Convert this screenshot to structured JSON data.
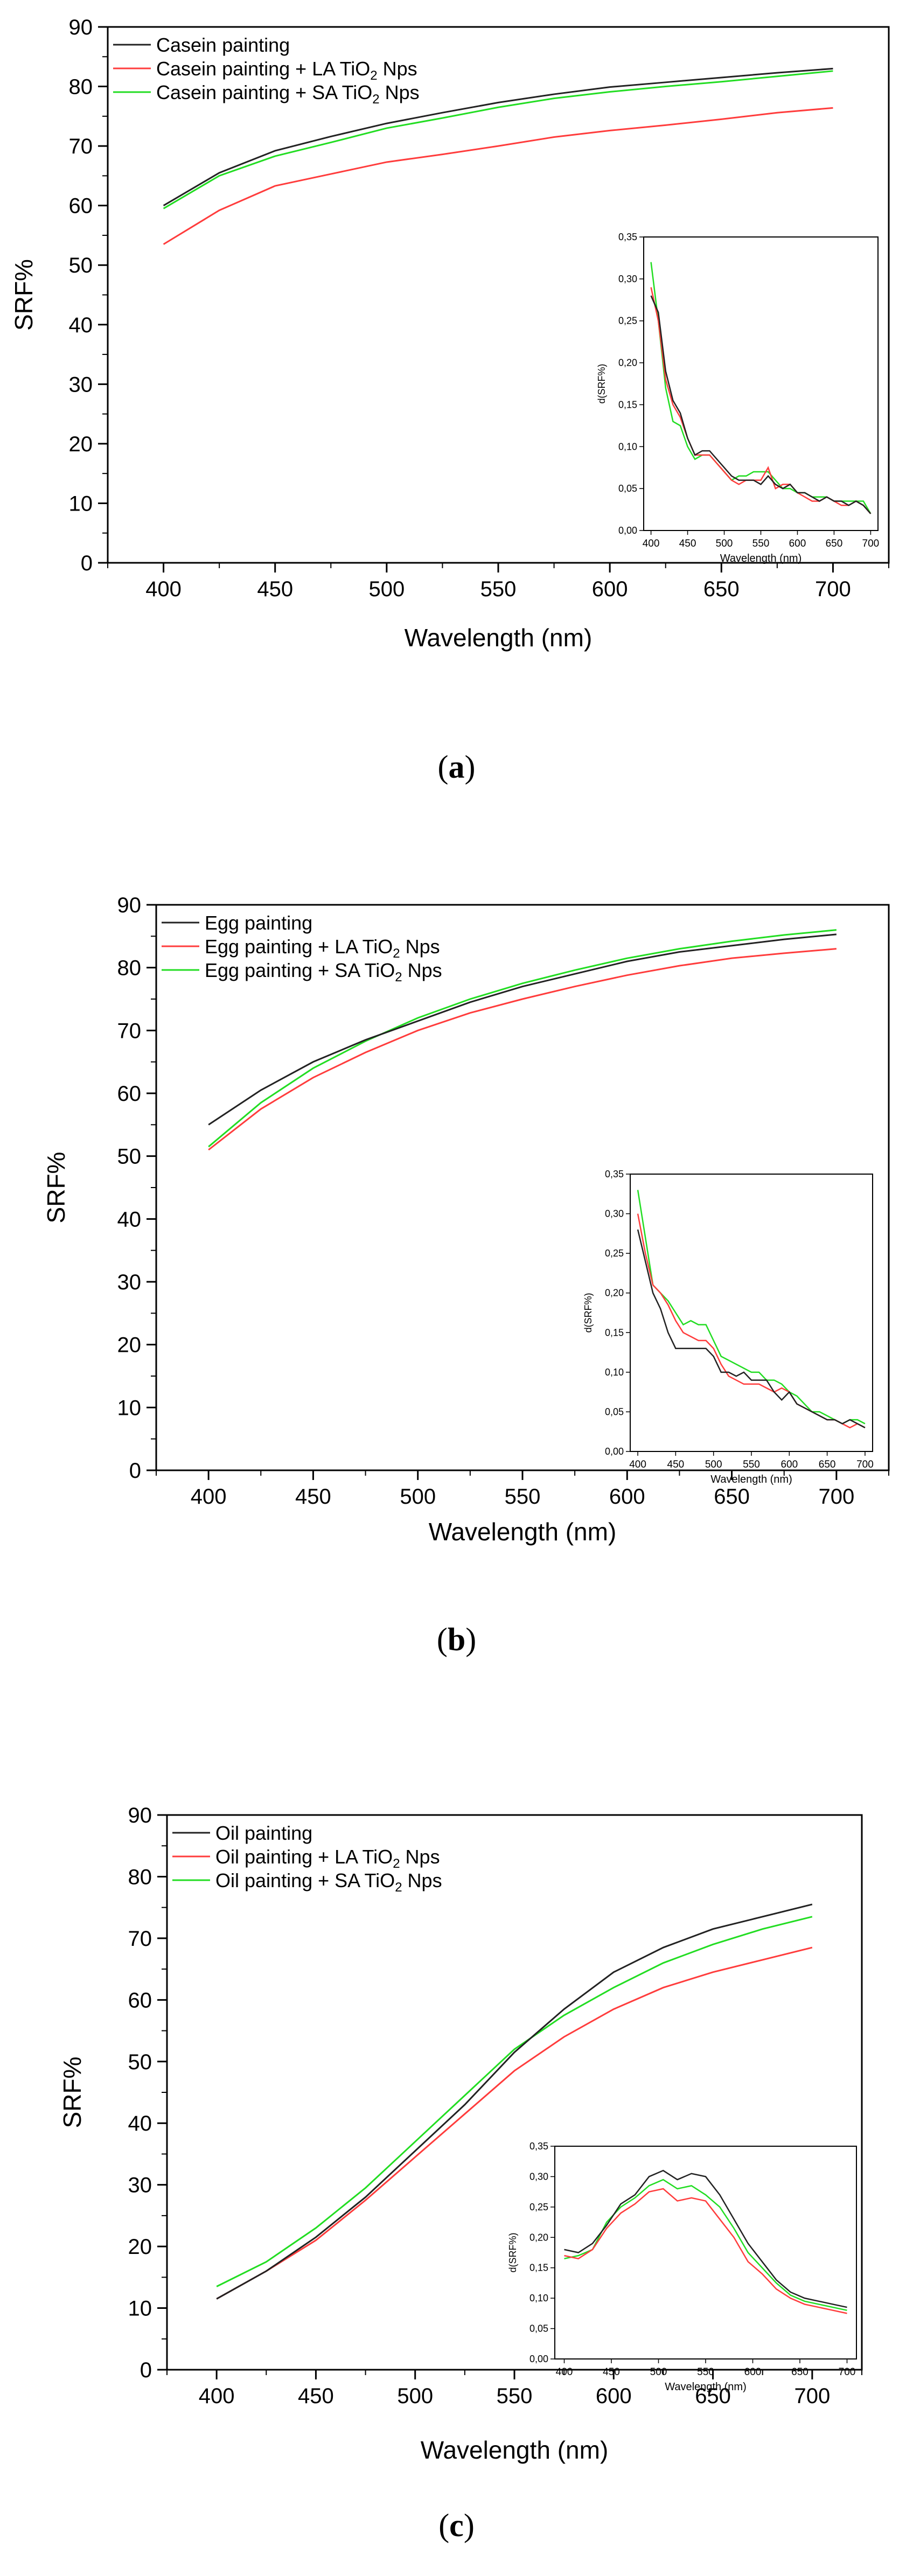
{
  "colors": {
    "series1": "#222222",
    "series2": "#ff3c3c",
    "series3": "#22dd22",
    "axis": "#000000"
  },
  "panels": [
    {
      "label": "a",
      "chart_data": {
        "type": "line",
        "title": "",
        "xlabel": "Wavelength (nm)",
        "ylabel": "SRF%",
        "xlim": [
          375,
          725
        ],
        "ylim": [
          0,
          90
        ],
        "xticks": [
          400,
          450,
          500,
          550,
          600,
          650,
          700
        ],
        "yticks": [
          0,
          10,
          20,
          30,
          40,
          50,
          60,
          70,
          80,
          90
        ],
        "x": [
          400,
          425,
          450,
          475,
          500,
          525,
          550,
          575,
          600,
          625,
          650,
          675,
          700
        ],
        "series": [
          {
            "name": "Casein painting",
            "values": [
              60,
              65.5,
              69.2,
              71.6,
              73.8,
              75.6,
              77.3,
              78.7,
              79.9,
              80.7,
              81.5,
              82.3,
              83
            ]
          },
          {
            "name": "Casein painting + LA TiO",
            "sub": "2",
            "suffix": " Nps",
            "values": [
              53.5,
              59.2,
              63.3,
              65.3,
              67.3,
              68.6,
              70,
              71.5,
              72.6,
              73.5,
              74.5,
              75.6,
              76.4
            ]
          },
          {
            "name": "Casein painting + SA TiO",
            "sub": "2",
            "suffix": " Nps",
            "values": [
              59.5,
              65,
              68.3,
              70.6,
              73,
              74.7,
              76.5,
              78,
              79.1,
              80,
              80.8,
              81.7,
              82.6
            ]
          }
        ],
        "inset": {
          "xlabel": "Wavelength (nm)",
          "ylabel": "d(SRF%)",
          "xlim": [
            390,
            710
          ],
          "ylim": [
            0,
            0.35
          ],
          "xticks": [
            400,
            450,
            500,
            550,
            600,
            650,
            700
          ],
          "yticks": [
            "0,00",
            "0,05",
            "0,10",
            "0,15",
            "0,20",
            "0,25",
            "0,30",
            "0,35"
          ],
          "x": [
            400,
            410,
            420,
            430,
            440,
            450,
            460,
            470,
            480,
            490,
            500,
            510,
            520,
            530,
            540,
            550,
            560,
            570,
            580,
            590,
            600,
            610,
            620,
            630,
            640,
            650,
            660,
            670,
            680,
            690,
            700
          ],
          "series": [
            {
              "name": "Casein painting",
              "values": [
                0.28,
                0.26,
                0.19,
                0.155,
                0.14,
                0.11,
                0.09,
                0.095,
                0.095,
                0.085,
                0.075,
                0.065,
                0.06,
                0.06,
                0.06,
                0.055,
                0.065,
                0.055,
                0.05,
                0.055,
                0.045,
                0.045,
                0.04,
                0.035,
                0.04,
                0.035,
                0.035,
                0.03,
                0.035,
                0.03,
                0.02
              ]
            },
            {
              "name": "Casein painting + LA TiO2 Nps",
              "values": [
                0.29,
                0.25,
                0.18,
                0.15,
                0.135,
                0.11,
                0.09,
                0.09,
                0.09,
                0.08,
                0.07,
                0.06,
                0.055,
                0.06,
                0.06,
                0.06,
                0.075,
                0.05,
                0.055,
                0.055,
                0.045,
                0.04,
                0.035,
                0.035,
                0.04,
                0.035,
                0.03,
                0.03,
                0.035,
                0.03,
                0.02
              ]
            },
            {
              "name": "Casein painting + SA TiO2 Nps",
              "values": [
                0.32,
                0.25,
                0.17,
                0.13,
                0.125,
                0.1,
                0.085,
                0.09,
                0.09,
                0.08,
                0.07,
                0.06,
                0.065,
                0.065,
                0.07,
                0.07,
                0.07,
                0.06,
                0.05,
                0.05,
                0.045,
                0.045,
                0.04,
                0.04,
                0.04,
                0.035,
                0.035,
                0.035,
                0.035,
                0.035,
                0.02
              ]
            }
          ]
        }
      }
    },
    {
      "label": "b",
      "chart_data": {
        "type": "line",
        "title": "",
        "xlabel": "Wavelength (nm)",
        "ylabel": "SRF%",
        "xlim": [
          375,
          725
        ],
        "ylim": [
          0,
          90
        ],
        "xticks": [
          400,
          450,
          500,
          550,
          600,
          650,
          700
        ],
        "yticks": [
          0,
          10,
          20,
          30,
          40,
          50,
          60,
          70,
          80,
          90
        ],
        "x": [
          400,
          425,
          450,
          475,
          500,
          525,
          550,
          575,
          600,
          625,
          650,
          675,
          700
        ],
        "series": [
          {
            "name": "Egg painting",
            "values": [
              55,
              60.5,
              65,
              68.5,
              71.5,
              74.5,
              77,
              79,
              81,
              82.5,
              83.5,
              84.5,
              85.3
            ]
          },
          {
            "name": "Egg painting + LA TiO",
            "sub": "2",
            "suffix": " Nps",
            "values": [
              51,
              57.5,
              62.5,
              66.5,
              70,
              72.8,
              75,
              77,
              78.8,
              80.3,
              81.5,
              82.3,
              83
            ]
          },
          {
            "name": "Egg painting + SA TiO",
            "sub": "2",
            "suffix": " Nps",
            "values": [
              51.5,
              58.5,
              64,
              68.3,
              72,
              75,
              77.5,
              79.6,
              81.5,
              83,
              84.2,
              85.2,
              86
            ]
          }
        ],
        "inset": {
          "xlabel": "Wavelength (nm)",
          "ylabel": "d(SRF%)",
          "xlim": [
            390,
            710
          ],
          "ylim": [
            0,
            0.35
          ],
          "xticks": [
            400,
            450,
            500,
            550,
            600,
            650,
            700
          ],
          "yticks": [
            "0,00",
            "0,05",
            "0,10",
            "0,15",
            "0,20",
            "0,25",
            "0,30",
            "0,35"
          ],
          "x": [
            400,
            410,
            420,
            430,
            440,
            450,
            460,
            470,
            480,
            490,
            500,
            510,
            520,
            530,
            540,
            550,
            560,
            570,
            580,
            590,
            600,
            610,
            620,
            630,
            640,
            650,
            660,
            670,
            680,
            690,
            700
          ],
          "series": [
            {
              "name": "Egg painting",
              "values": [
                0.28,
                0.24,
                0.2,
                0.18,
                0.15,
                0.13,
                0.13,
                0.13,
                0.13,
                0.13,
                0.12,
                0.1,
                0.1,
                0.095,
                0.1,
                0.09,
                0.09,
                0.09,
                0.075,
                0.065,
                0.075,
                0.06,
                0.055,
                0.05,
                0.045,
                0.04,
                0.04,
                0.035,
                0.04,
                0.035,
                0.03
              ]
            },
            {
              "name": "Egg painting + LA TiO2 Nps",
              "values": [
                0.3,
                0.25,
                0.21,
                0.2,
                0.185,
                0.165,
                0.15,
                0.145,
                0.14,
                0.14,
                0.13,
                0.11,
                0.095,
                0.09,
                0.085,
                0.085,
                0.085,
                0.08,
                0.075,
                0.08,
                0.075,
                0.06,
                0.055,
                0.05,
                0.045,
                0.04,
                0.04,
                0.035,
                0.03,
                0.035,
                0.03
              ]
            },
            {
              "name": "Egg painting + SA TiO2 Nps",
              "values": [
                0.33,
                0.27,
                0.21,
                0.2,
                0.19,
                0.175,
                0.16,
                0.165,
                0.16,
                0.16,
                0.14,
                0.12,
                0.115,
                0.11,
                0.105,
                0.1,
                0.1,
                0.09,
                0.09,
                0.085,
                0.075,
                0.07,
                0.06,
                0.05,
                0.05,
                0.045,
                0.04,
                0.035,
                0.04,
                0.04,
                0.035
              ]
            }
          ]
        }
      }
    },
    {
      "label": "c",
      "chart_data": {
        "type": "line",
        "title": "",
        "xlabel": "Wavelength (nm)",
        "ylabel": "SRF%",
        "xlim": [
          375,
          725
        ],
        "ylim": [
          0,
          90
        ],
        "xticks": [
          400,
          450,
          500,
          550,
          600,
          650,
          700
        ],
        "yticks": [
          0,
          10,
          20,
          30,
          40,
          50,
          60,
          70,
          80,
          90
        ],
        "x": [
          400,
          425,
          450,
          475,
          500,
          525,
          550,
          575,
          600,
          625,
          650,
          675,
          700
        ],
        "series": [
          {
            "name": "Oil painting",
            "values": [
              11.5,
              16,
              21.5,
              28,
              35.5,
              43,
              51.5,
              58.5,
              64.5,
              68.5,
              71.5,
              73.5,
              75.5
            ]
          },
          {
            "name": "Oil painting + LA TiO",
            "sub": "2",
            "suffix": " Nps",
            "values": [
              11.5,
              16,
              21,
              27.5,
              34.5,
              41.5,
              48.5,
              54,
              58.5,
              62,
              64.5,
              66.5,
              68.5
            ]
          },
          {
            "name": "Oil painting + SA TiO",
            "sub": "2",
            "suffix": " Nps",
            "values": [
              13.5,
              17.5,
              23,
              29.5,
              37,
              44.5,
              52,
              57.5,
              62,
              66,
              69,
              71.5,
              73.5
            ]
          }
        ],
        "inset": {
          "xlabel": "Wavelength (nm)",
          "ylabel": "d(SRF%)",
          "xlim": [
            390,
            710
          ],
          "ylim": [
            0,
            0.35
          ],
          "xticks": [
            400,
            450,
            500,
            550,
            600,
            650,
            700
          ],
          "yticks": [
            "0,00",
            "0,05",
            "0,10",
            "0,15",
            "0,20",
            "0,25",
            "0,30",
            "0,35"
          ],
          "x": [
            400,
            415,
            430,
            445,
            460,
            475,
            490,
            505,
            520,
            535,
            550,
            565,
            580,
            595,
            610,
            625,
            640,
            655,
            670,
            685,
            700
          ],
          "series": [
            {
              "name": "Oil painting",
              "values": [
                0.18,
                0.175,
                0.19,
                0.22,
                0.255,
                0.27,
                0.3,
                0.31,
                0.295,
                0.305,
                0.3,
                0.27,
                0.23,
                0.19,
                0.16,
                0.13,
                0.11,
                0.1,
                0.095,
                0.09,
                0.085
              ]
            },
            {
              "name": "Oil painting + LA TiO2 Nps",
              "values": [
                0.17,
                0.165,
                0.18,
                0.215,
                0.24,
                0.255,
                0.275,
                0.28,
                0.26,
                0.265,
                0.26,
                0.23,
                0.2,
                0.16,
                0.14,
                0.115,
                0.1,
                0.09,
                0.085,
                0.08,
                0.075
              ]
            },
            {
              "name": "Oil painting + SA TiO2 Nps",
              "values": [
                0.165,
                0.17,
                0.18,
                0.225,
                0.25,
                0.265,
                0.285,
                0.295,
                0.28,
                0.285,
                0.27,
                0.25,
                0.215,
                0.175,
                0.15,
                0.125,
                0.105,
                0.095,
                0.09,
                0.085,
                0.08
              ]
            }
          ]
        }
      }
    }
  ]
}
